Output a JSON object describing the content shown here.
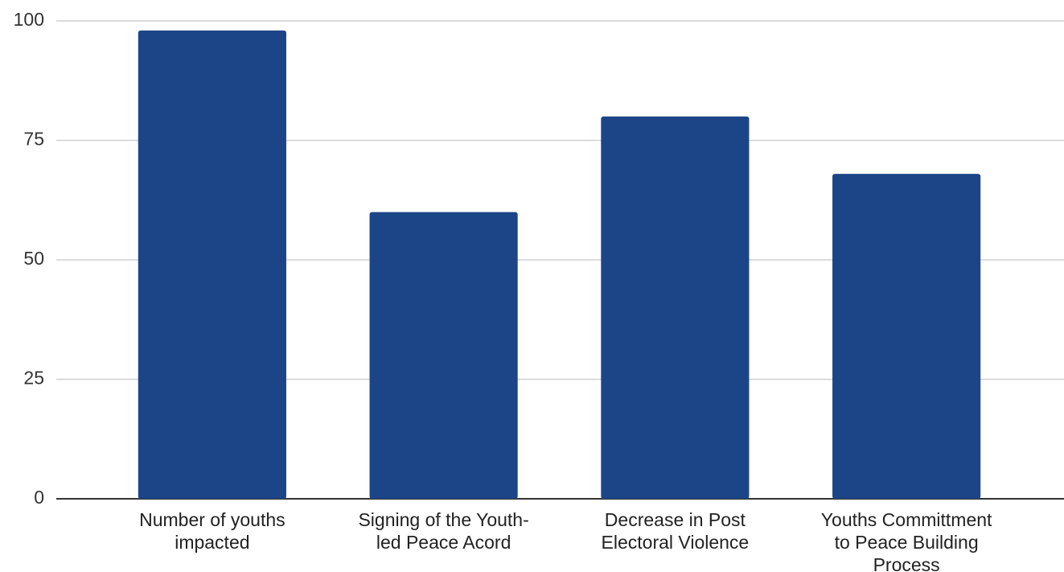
{
  "chart_data": {
    "type": "bar",
    "categories": [
      "Number of youths impacted",
      "Signing of the Youth-led Peace Acord",
      "Decrease in Post Electoral Violence",
      "Youths Committment to Peace Building Process"
    ],
    "values": [
      98,
      60,
      80,
      68
    ],
    "color": "#1c4587",
    "ylim": [
      0,
      100
    ],
    "yticks": [
      0,
      25,
      50,
      75,
      100
    ],
    "grid": true
  }
}
